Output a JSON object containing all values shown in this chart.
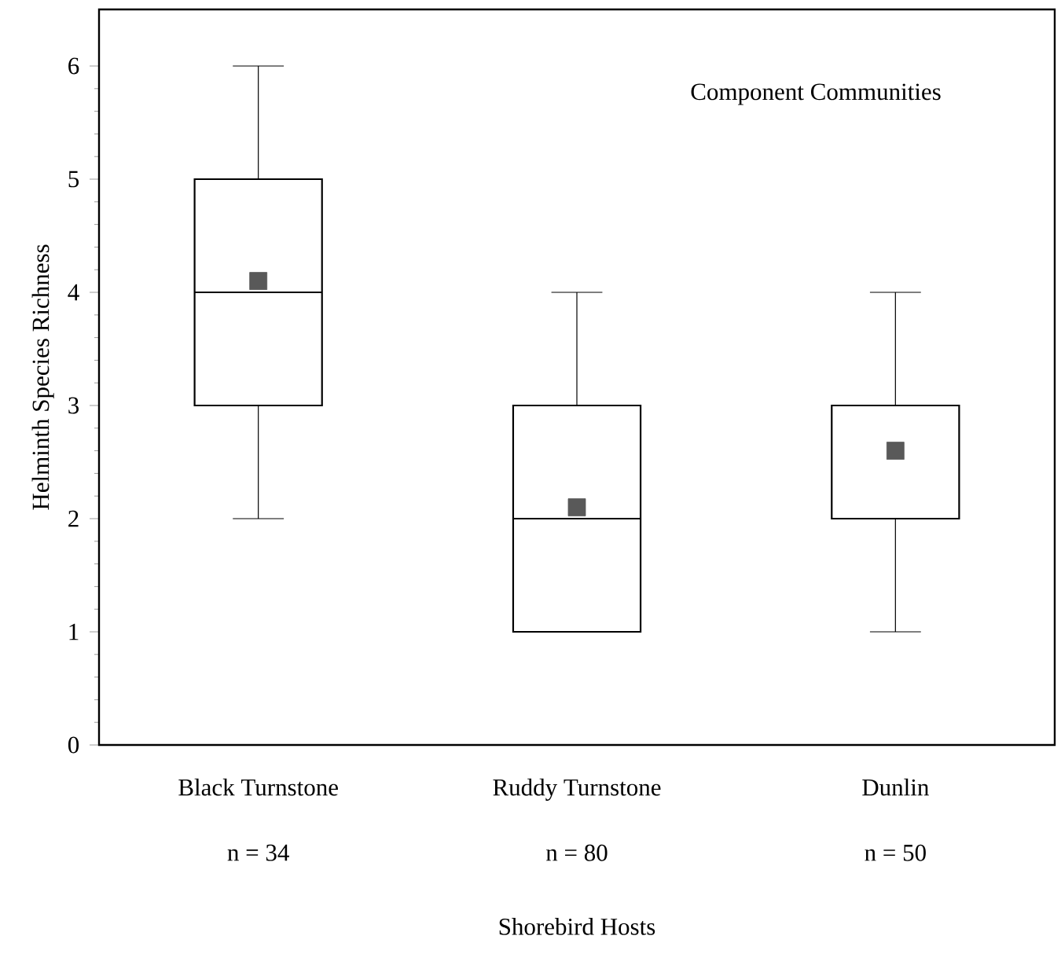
{
  "chart_data": {
    "type": "box",
    "title": "Component Communities",
    "xlabel": "Shorebird Hosts",
    "ylabel": "Helminth Species Richness",
    "categories": [
      "Black Turnstone",
      "Ruddy Turnstone",
      "Dunlin"
    ],
    "boxes": [
      {
        "low": 2,
        "q1": 3,
        "median": 4,
        "q3": 5,
        "high": 6,
        "mean": 4.1
      },
      {
        "low": 1,
        "q1": 1,
        "median": 2,
        "q3": 3,
        "high": 4,
        "mean": 2.1
      },
      {
        "low": 1,
        "q1": 2,
        "median": 3,
        "q3": 3,
        "high": 4,
        "mean": 2.6
      }
    ],
    "annotations": [
      "n = 34",
      "n = 80",
      "n = 50"
    ],
    "ylim": [
      0,
      6.5
    ],
    "yticks": [
      0,
      1,
      2,
      3,
      4,
      5,
      6
    ],
    "marker": "square"
  }
}
